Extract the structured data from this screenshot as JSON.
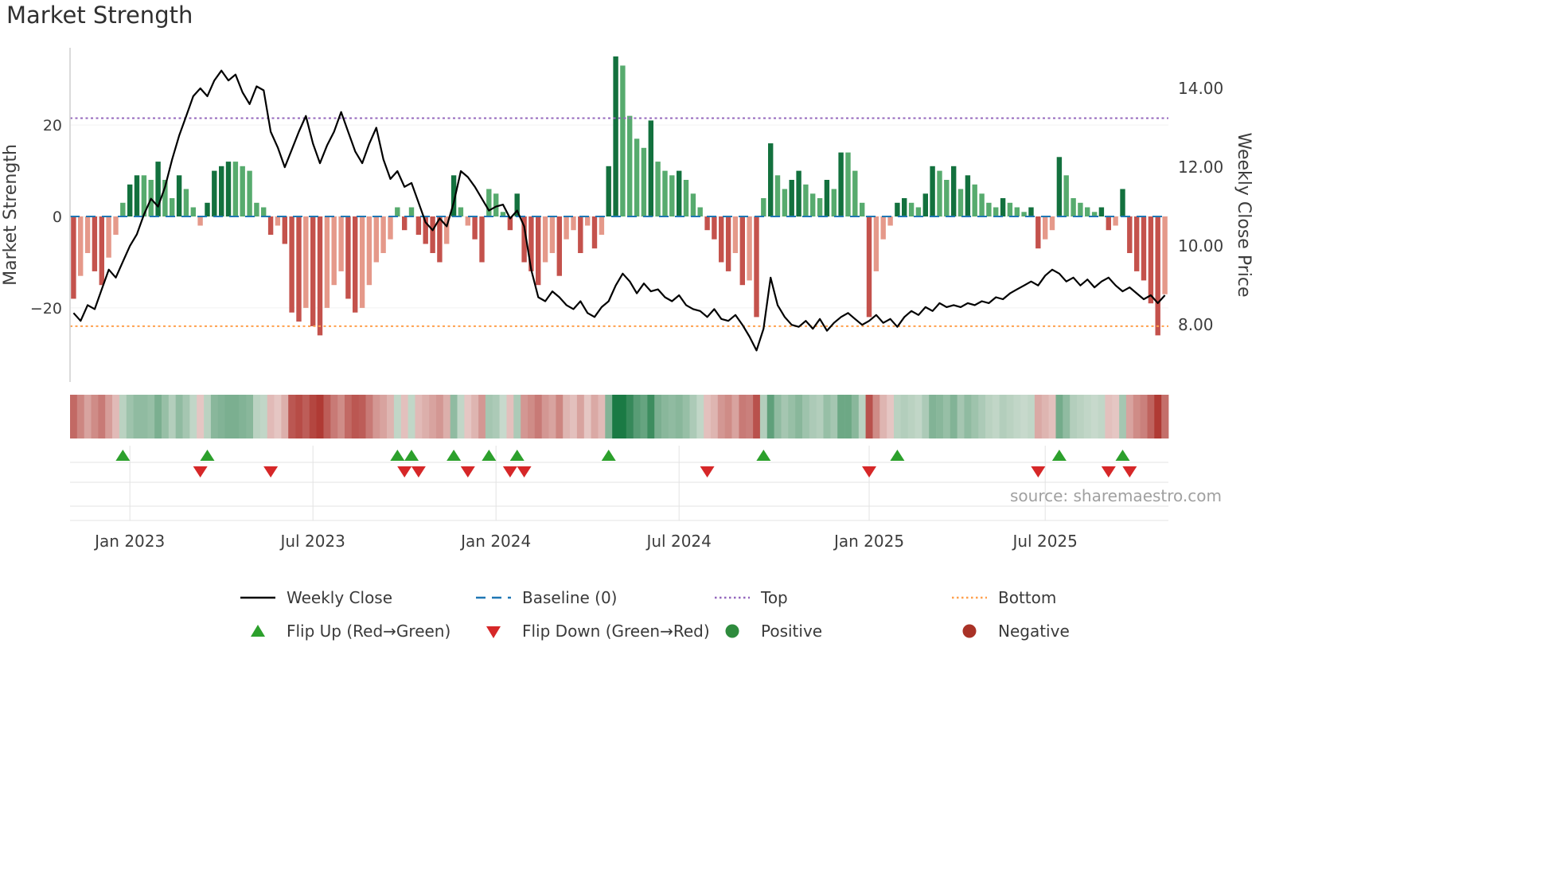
{
  "title": "Market Strength",
  "source": "source: sharemaestro.com",
  "legend": {
    "rows": [
      [
        {
          "id": "weekly-close",
          "label": "Weekly Close",
          "type": "line",
          "color": "#000000"
        },
        {
          "id": "baseline",
          "label": "Baseline (0)",
          "type": "dashed",
          "color": "#1f77b4"
        },
        {
          "id": "top",
          "label": "Top",
          "type": "dotted",
          "color": "#9467bd"
        },
        {
          "id": "bottom",
          "label": "Bottom",
          "type": "dotted",
          "color": "#ffa04d"
        }
      ],
      [
        {
          "id": "flip-up",
          "label": "Flip Up (Red→Green)",
          "type": "triangle-up",
          "color": "#2ca02c"
        },
        {
          "id": "flip-down",
          "label": "Flip Down (Green→Red)",
          "type": "triangle-down",
          "color": "#d62728"
        },
        {
          "id": "positive",
          "label": "Positive",
          "type": "circle",
          "color": "#2e8b3d"
        },
        {
          "id": "negative",
          "label": "Negative",
          "type": "circle",
          "color": "#a93226"
        }
      ]
    ]
  },
  "chart_data": {
    "type": "combo",
    "title": "Market Strength",
    "ylabel_left": "Market Strength",
    "ylabel_right": "Weekly Close Price",
    "ylim_strength": [
      -36.2,
      36.9
    ],
    "ylim_price": [
      6.55,
      15.03
    ],
    "baseline": 0,
    "top_level": 21.5,
    "bottom_level": -24,
    "left_ticks": [
      {
        "label": "20",
        "value": 20
      },
      {
        "label": "0",
        "value": 0
      },
      {
        "label": "−20",
        "value": -20
      }
    ],
    "right_ticks": [
      {
        "label": "14.00",
        "value": 14
      },
      {
        "label": "12.00",
        "value": 12
      },
      {
        "label": "10.00",
        "value": 10
      },
      {
        "label": "8.00",
        "value": 8
      }
    ],
    "x_ticks": [
      {
        "label": "Jan 2023",
        "index": 8
      },
      {
        "label": "Jul 2023",
        "index": 34
      },
      {
        "label": "Jan 2024",
        "index": 60
      },
      {
        "label": "Jul 2024",
        "index": 86
      },
      {
        "label": "Jan 2025",
        "index": 113
      },
      {
        "label": "Jul 2025",
        "index": 138
      }
    ],
    "series": [
      {
        "name": "Market Strength",
        "type": "bar",
        "axis": "left",
        "values": [
          -18,
          -13,
          -8,
          -12,
          -15,
          -9,
          -4,
          3,
          7,
          9,
          9,
          8,
          12,
          8,
          4,
          9,
          6,
          2,
          -2,
          3,
          10,
          11,
          12,
          12,
          11,
          10,
          3,
          2,
          -4,
          -2,
          -6,
          -21,
          -23,
          -20,
          -24,
          -26,
          -20,
          -15,
          -12,
          -18,
          -21,
          -20,
          -15,
          -10,
          -8,
          -5,
          2,
          -3,
          2,
          -4,
          -6,
          -8,
          -10,
          -6,
          9,
          2,
          -2,
          -5,
          -10,
          6,
          5,
          1,
          -3,
          5,
          -10,
          -12,
          -15,
          -10,
          -8,
          -13,
          -5,
          -3,
          -8,
          -2,
          -7,
          -4,
          11,
          35,
          33,
          22,
          17,
          15,
          21,
          12,
          10,
          9,
          10,
          8,
          5,
          2,
          -3,
          -5,
          -10,
          -12,
          -8,
          -15,
          -14,
          -22,
          4,
          16,
          9,
          6,
          8,
          10,
          7,
          5,
          4,
          8,
          6,
          14,
          14,
          10,
          3,
          -22,
          -12,
          -5,
          -2,
          3,
          4,
          3,
          2,
          5,
          11,
          10,
          8,
          11,
          6,
          9,
          7,
          5,
          3,
          2,
          4,
          3,
          2,
          1,
          2,
          -7,
          -5,
          -3,
          13,
          9,
          4,
          3,
          2,
          1,
          2,
          -3,
          -2,
          6,
          -8,
          -12,
          -14,
          -19,
          -26,
          -17
        ]
      },
      {
        "name": "Weekly Close",
        "type": "line",
        "axis": "right",
        "values": [
          8.3,
          8.1,
          8.5,
          8.4,
          8.9,
          9.4,
          9.2,
          9.6,
          10.0,
          10.3,
          10.8,
          11.2,
          11.0,
          11.5,
          12.2,
          12.8,
          13.3,
          13.8,
          14.0,
          13.8,
          14.2,
          14.45,
          14.2,
          14.35,
          13.9,
          13.6,
          14.05,
          13.95,
          12.9,
          12.5,
          12.0,
          12.45,
          12.9,
          13.3,
          12.6,
          12.1,
          12.55,
          12.9,
          13.4,
          12.9,
          12.4,
          12.1,
          12.6,
          13.0,
          12.2,
          11.7,
          11.9,
          11.5,
          11.6,
          11.1,
          10.6,
          10.4,
          10.7,
          10.5,
          11.1,
          11.9,
          11.75,
          11.5,
          11.2,
          10.9,
          11.0,
          11.05,
          10.7,
          10.9,
          10.5,
          9.4,
          8.7,
          8.6,
          8.85,
          8.7,
          8.5,
          8.4,
          8.6,
          8.3,
          8.2,
          8.45,
          8.6,
          9.0,
          9.3,
          9.1,
          8.8,
          9.05,
          8.85,
          8.9,
          8.7,
          8.6,
          8.75,
          8.5,
          8.4,
          8.35,
          8.2,
          8.4,
          8.15,
          8.1,
          8.25,
          8.0,
          7.7,
          7.35,
          7.9,
          9.2,
          8.5,
          8.2,
          8.0,
          7.95,
          8.1,
          7.9,
          8.15,
          7.85,
          8.05,
          8.2,
          8.3,
          8.15,
          8.0,
          8.1,
          8.25,
          8.05,
          8.15,
          7.95,
          8.2,
          8.35,
          8.25,
          8.45,
          8.35,
          8.55,
          8.45,
          8.5,
          8.45,
          8.55,
          8.5,
          8.6,
          8.55,
          8.7,
          8.65,
          8.8,
          8.9,
          9.0,
          9.1,
          9.0,
          9.25,
          9.4,
          9.3,
          9.1,
          9.2,
          9.0,
          9.15,
          8.95,
          9.1,
          9.2,
          9.0,
          8.85,
          8.95,
          8.8,
          8.65,
          8.75,
          8.55,
          8.75
        ]
      }
    ],
    "flip_up_weeks": [
      7,
      19,
      46,
      48,
      54,
      59,
      63,
      76,
      98,
      117,
      140,
      149
    ],
    "flip_down_weeks": [
      18,
      28,
      47,
      49,
      56,
      62,
      64,
      90,
      113,
      137,
      147,
      150
    ],
    "colors": {
      "bar_pos_dark": "#13713e",
      "bar_pos_light": "#57ab6e",
      "bar_neg_dark": "#c4524c",
      "bar_neg_light": "#e5998a",
      "heat_pos": "#1a7a44",
      "heat_neg": "#b03a34",
      "price_line": "#000000",
      "baseline": "#1f77b4",
      "top": "#9467bd",
      "bottom": "#ffa04d",
      "flip_up": "#2ca02c",
      "flip_down": "#d62728",
      "grid": "#e3e3e3",
      "tick_text": "#3d3d3d",
      "source_text": "#a0a0a0"
    }
  }
}
